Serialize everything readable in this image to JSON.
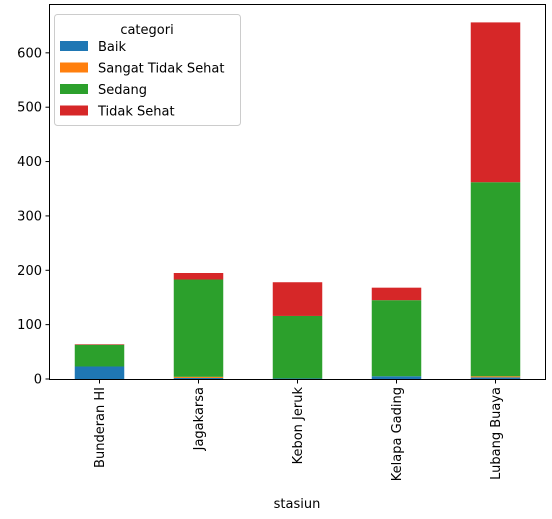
{
  "chart_data": {
    "type": "bar",
    "stacked": true,
    "categories": [
      "Bunderan HI",
      "Jagakarsa",
      "Kebon Jeruk",
      "Kelapa Gading",
      "Lubang Buaya"
    ],
    "series": [
      {
        "name": "Baik",
        "color": "#1f77b4",
        "values": [
          23,
          2,
          1,
          5,
          3
        ]
      },
      {
        "name": "Sangat Tidak Sehat",
        "color": "#ff7f0e",
        "values": [
          0,
          2,
          0,
          0,
          2
        ]
      },
      {
        "name": "Sedang",
        "color": "#2ca02c",
        "values": [
          40,
          179,
          115,
          140,
          357
        ]
      },
      {
        "name": "Tidak Sehat",
        "color": "#d62728",
        "values": [
          1,
          12,
          62,
          23,
          294
        ]
      }
    ],
    "xlabel": "stasiun",
    "ylabel": "",
    "ylim": [
      0,
      688
    ],
    "yticks": [
      0,
      100,
      200,
      300,
      400,
      500,
      600
    ],
    "legend": {
      "title": "categori",
      "placement": "top-left"
    },
    "grid": false
  }
}
